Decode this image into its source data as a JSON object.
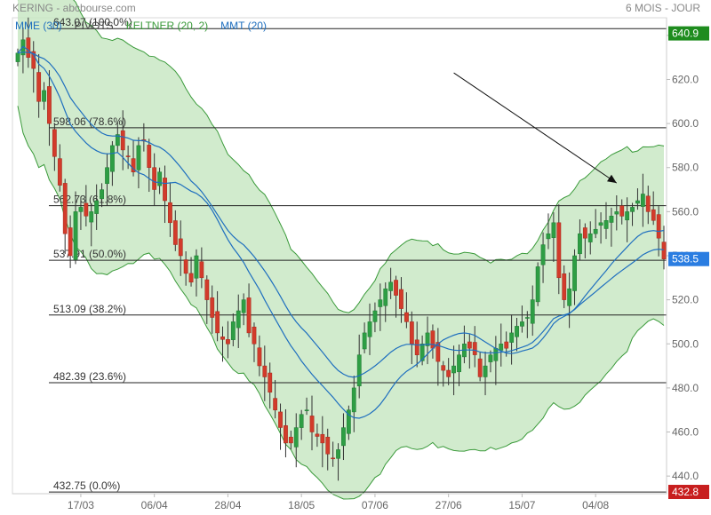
{
  "header": {
    "title": "KERING - abcbourse.com",
    "period": "6 MOIS - JOUR",
    "legend": [
      {
        "label": "MME (30)",
        "color": "#1f6fbf"
      },
      {
        "label": "PIVOTS",
        "color": "#444444"
      },
      {
        "label": "KELTNER (20, 2)",
        "color": "#3a9a3a"
      },
      {
        "label": "MMT (20)",
        "color": "#1f6fbf"
      }
    ]
  },
  "chart_data": {
    "type": "candlestick",
    "ylim": [
      432,
      648
    ],
    "y_ticks": [
      "440.0",
      "460.0",
      "480.0",
      "500.0",
      "520.0",
      "540.0",
      "560.0",
      "580.0",
      "600.0",
      "620.0",
      "640.0"
    ],
    "y_tick_values": [
      440,
      460,
      480,
      500,
      520,
      540,
      560,
      580,
      600,
      620,
      640
    ],
    "x_ticks": [
      "17/03",
      "06/04",
      "28/04",
      "18/05",
      "07/06",
      "27/06",
      "15/07",
      "04/08"
    ],
    "x_tick_index": [
      12,
      26,
      40,
      54,
      68,
      82,
      96,
      110
    ],
    "n_sessions": 124,
    "fib_levels": [
      {
        "value": 643.07,
        "label": "643.07",
        "pct": "(100.0%)"
      },
      {
        "value": 598.06,
        "label": "598.06",
        "pct": "(78.6%)"
      },
      {
        "value": 562.73,
        "label": "562.73",
        "pct": "(61.8%)"
      },
      {
        "value": 537.91,
        "label": "537.91",
        "pct": "(50.0%)"
      },
      {
        "value": 513.09,
        "label": "513.09",
        "pct": "(38.2%)"
      },
      {
        "value": 482.39,
        "label": "482.39",
        "pct": "(23.6%)"
      },
      {
        "value": 432.75,
        "label": "432.75",
        "pct": "(0.0%)"
      }
    ],
    "price_tags": [
      {
        "value": 640.9,
        "label": "640.9",
        "color": "#1e8c1e"
      },
      {
        "value": 538.5,
        "label": "538.5",
        "color": "#2a7de1"
      },
      {
        "value": 432.8,
        "label": "432.8",
        "color": "#c81e1e"
      }
    ],
    "trend_arrow": {
      "from": {
        "i": 83,
        "v": 623
      },
      "to": {
        "i": 114,
        "v": 573
      }
    },
    "close": [
      632,
      638,
      630,
      625,
      610,
      615,
      600,
      585,
      572,
      550,
      540,
      560,
      562,
      558,
      560,
      565,
      570,
      580,
      590,
      595,
      588,
      585,
      578,
      590,
      592,
      580,
      570,
      578,
      565,
      555,
      545,
      540,
      532,
      528,
      540,
      530,
      520,
      512,
      505,
      502,
      500,
      510,
      515,
      520,
      505,
      500,
      490,
      485,
      478,
      470,
      462,
      455,
      455,
      462,
      468,
      470,
      460,
      458,
      455,
      450,
      448,
      452,
      462,
      470,
      480,
      495,
      505,
      510,
      515,
      520,
      525,
      528,
      522,
      516,
      510,
      500,
      495,
      500,
      505,
      498,
      492,
      488,
      485,
      490,
      495,
      500,
      498,
      495,
      485,
      490,
      495,
      498,
      500,
      498,
      505,
      508,
      510,
      512,
      520,
      535,
      545,
      550,
      555,
      530,
      520,
      525,
      540,
      550,
      548,
      550,
      552,
      555,
      556,
      558,
      560,
      558,
      560,
      562,
      565,
      568,
      560,
      556,
      548,
      538.5
    ]
  }
}
